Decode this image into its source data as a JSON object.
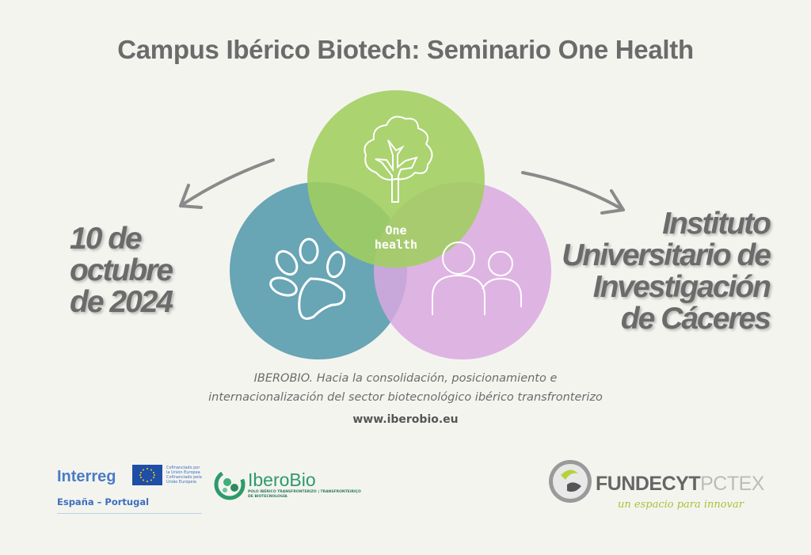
{
  "title": "Campus Ibérico Biotech: Seminario One Health",
  "date_lines": [
    "10 de",
    "octubre",
    "de 2024"
  ],
  "venue_lines": [
    "Instituto",
    "Universitario de",
    "Investigación",
    "de Cáceres"
  ],
  "center_label": [
    "One",
    "health"
  ],
  "subtitle_lines": [
    "IBEROBIO. Hacia la consolidación, posicionamiento e",
    "internacionalización del sector biotecnológico ibérico transfronterizo"
  ],
  "url": "www.iberobio.eu",
  "circles": {
    "environment_color": "#a8d06e",
    "animal_color": "#68a5b5",
    "human_color": "#ddb3e0",
    "icons": [
      "tree-icon",
      "paw-icon",
      "people-icon"
    ]
  },
  "logos": {
    "interreg": {
      "name": "Interreg",
      "region": "España – Portugal",
      "eu_text": [
        "Cofinanciado por la Unión Europea",
        "Cofinanciado pela União Europeia"
      ]
    },
    "iberobio": {
      "name": "IberoBio",
      "tagline": [
        "POLO IBÉRICO TRANSFRONTERIZO | TRANSFRONTEIRIÇO",
        "DE BIOTECNOLOGÍA"
      ]
    },
    "fundecyt": {
      "name_bold": "FUNDECYT",
      "name_light": "PCTEX",
      "tagline": "un espacio para innovar"
    }
  }
}
